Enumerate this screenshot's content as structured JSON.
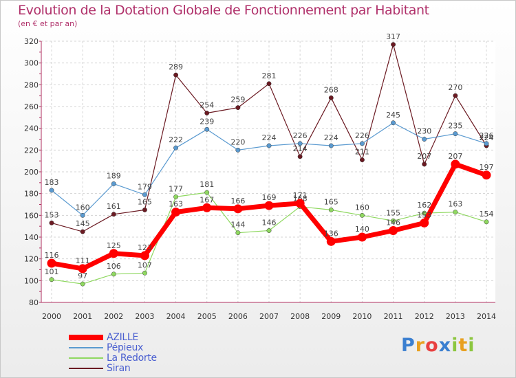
{
  "header": {
    "title": "Evolution de la Dotation Globale de Fonctionnement par Habitant",
    "subtitle": "(en € et par an)"
  },
  "logo": {
    "text": "Proxiti",
    "letters": [
      {
        "ch": "P",
        "color": "#3a7fd0"
      },
      {
        "ch": "r",
        "color": "#e8a020"
      },
      {
        "ch": "o",
        "color": "#e84040"
      },
      {
        "ch": "x",
        "color": "#3a7fd0"
      },
      {
        "ch": "i",
        "color": "#8cc63f"
      },
      {
        "ch": "t",
        "color": "#e8a020"
      },
      {
        "ch": "i",
        "color": "#8cc63f"
      }
    ]
  },
  "chart_data": {
    "type": "line",
    "title": "Evolution de la Dotation Globale de Fonctionnement par Habitant",
    "subtitle": "(en € et par an)",
    "x": [
      "2000",
      "2001",
      "2002",
      "2003",
      "2004",
      "2005",
      "2006",
      "2007",
      "2008",
      "2009",
      "2010",
      "2011",
      "2012",
      "2013",
      "2014"
    ],
    "ylim": [
      80,
      320
    ],
    "yticks": [
      80,
      100,
      120,
      140,
      160,
      180,
      200,
      220,
      240,
      260,
      280,
      300,
      320
    ],
    "grid": true,
    "legend_position": "bottom-left",
    "series": [
      {
        "name": "Siran",
        "color": "#6b1a22",
        "values": [
          153,
          145,
          161,
          165,
          289,
          254,
          259,
          281,
          214,
          268,
          211,
          317,
          207,
          270,
          224
        ]
      },
      {
        "name": "Pépieux",
        "color": "#5a9ad0",
        "values": [
          183,
          160,
          189,
          179,
          222,
          239,
          220,
          224,
          226,
          224,
          226,
          245,
          230,
          235,
          226
        ]
      },
      {
        "name": "La Redorte",
        "color": "#8fd860",
        "values": [
          101,
          97,
          106,
          107,
          177,
          181,
          144,
          146,
          168,
          165,
          160,
          155,
          162,
          163,
          154
        ]
      },
      {
        "name": "AZILLE",
        "color": "#ff0000",
        "values": [
          116,
          111,
          125,
          123,
          163,
          167,
          166,
          169,
          171,
          136,
          140,
          146,
          153,
          207,
          197
        ]
      }
    ],
    "legend": [
      "AZILLE",
      "Pépieux",
      "La Redorte",
      "Siran"
    ]
  }
}
